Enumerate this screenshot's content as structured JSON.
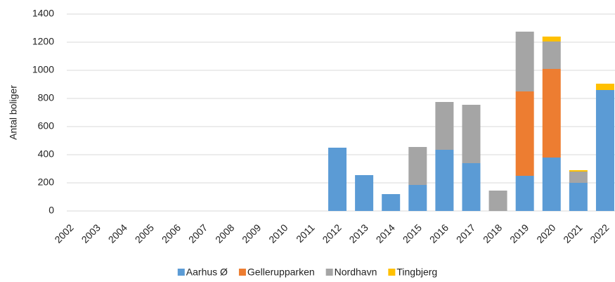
{
  "chart_data": {
    "type": "stacked_bar",
    "y_label": "Antal boliger",
    "categories": [
      "2002",
      "2003",
      "2004",
      "2005",
      "2006",
      "2007",
      "2008",
      "2009",
      "2010",
      "2011",
      "2012",
      "2013",
      "2014",
      "2015",
      "2016",
      "2017",
      "2018",
      "2019",
      "2020",
      "2021",
      "2022"
    ],
    "series": [
      {
        "name": "Aarhus Ø",
        "color": "#5b9bd5",
        "values": [
          0,
          0,
          0,
          0,
          0,
          0,
          0,
          0,
          0,
          0,
          450,
          255,
          120,
          185,
          435,
          340,
          0,
          250,
          380,
          200,
          860
        ]
      },
      {
        "name": "Gellerupparken",
        "color": "#ed7d31",
        "values": [
          0,
          0,
          0,
          0,
          0,
          0,
          0,
          0,
          0,
          0,
          0,
          0,
          0,
          0,
          0,
          0,
          0,
          600,
          630,
          0,
          0
        ]
      },
      {
        "name": "Nordhavn",
        "color": "#a5a5a5",
        "values": [
          0,
          0,
          0,
          0,
          0,
          0,
          0,
          0,
          0,
          0,
          0,
          0,
          0,
          270,
          340,
          415,
          145,
          425,
          195,
          80,
          0
        ]
      },
      {
        "name": "Tingbjerg",
        "color": "#ffc000",
        "values": [
          0,
          0,
          0,
          0,
          0,
          0,
          0,
          0,
          0,
          0,
          0,
          0,
          0,
          0,
          0,
          0,
          0,
          0,
          35,
          10,
          45
        ]
      }
    ],
    "ylim": [
      0,
      1400
    ],
    "yticks": [
      0,
      200,
      400,
      600,
      800,
      1000,
      1200,
      1400
    ],
    "grid": true,
    "legend": "bottom"
  }
}
